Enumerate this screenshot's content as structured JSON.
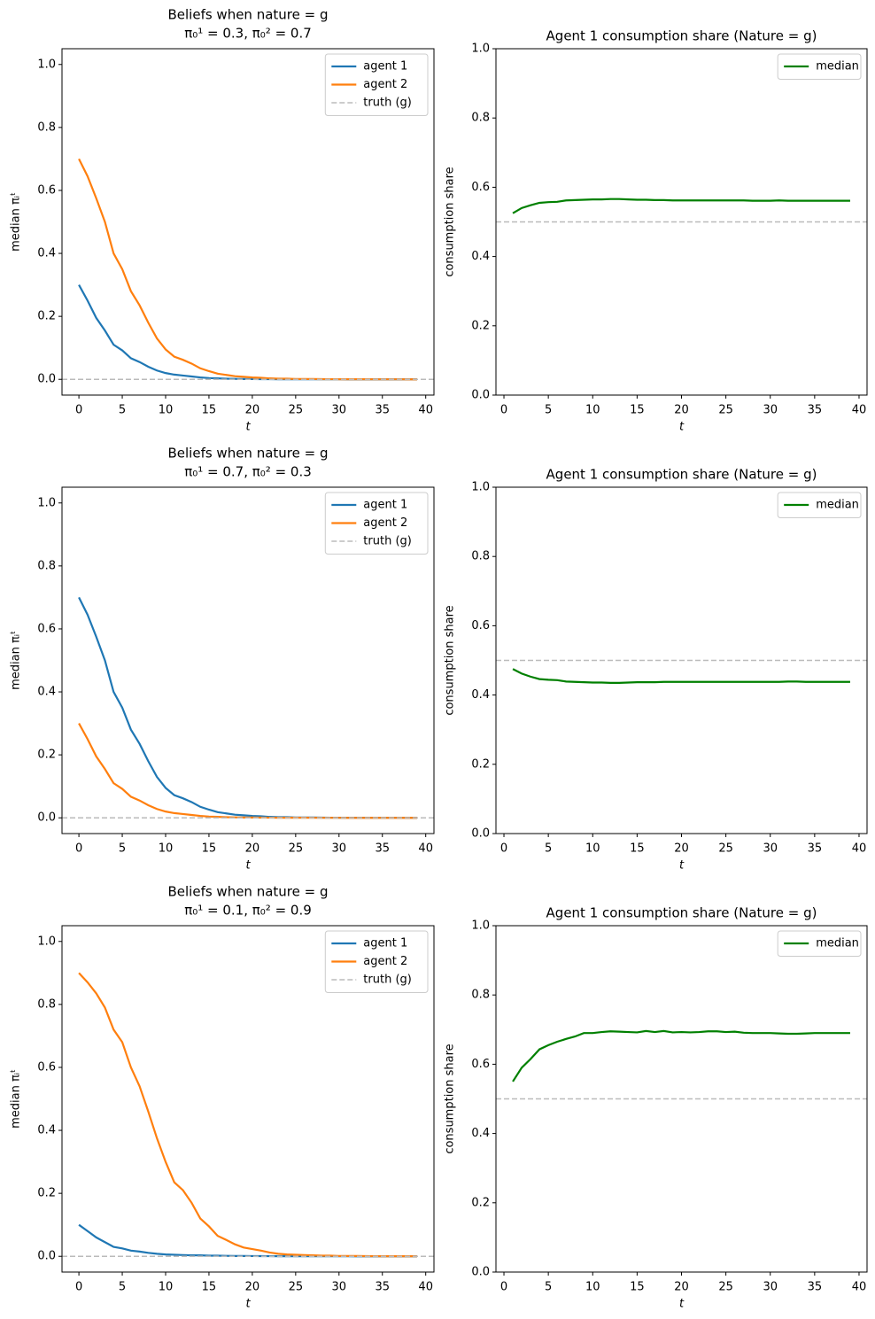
{
  "chart_data": [
    {
      "type": "line",
      "title": "Beliefs when nature = g",
      "subtitle": "π₀¹ = 0.3, π₀² = 0.7",
      "x_label": "t",
      "y_label": "median πᵢᵗ",
      "x": [
        0,
        1,
        2,
        3,
        4,
        5,
        6,
        7,
        8,
        9,
        10,
        11,
        12,
        13,
        14,
        15,
        16,
        17,
        18,
        19,
        20,
        21,
        22,
        23,
        24,
        25,
        26,
        27,
        28,
        29,
        30,
        31,
        32,
        33,
        34,
        35,
        36,
        37,
        38,
        39
      ],
      "series": [
        {
          "name": "agent 1",
          "color": "#1f77b4",
          "values": [
            0.3,
            0.25,
            0.195,
            0.155,
            0.11,
            0.092,
            0.067,
            0.055,
            0.04,
            0.028,
            0.02,
            0.015,
            0.012,
            0.009,
            0.006,
            0.004,
            0.003,
            0.002,
            0.0015,
            0.001,
            0.001,
            0.0007,
            0.0005,
            0.0004,
            0.0003,
            0.0002,
            0.0002,
            0.0001,
            0.0001,
            0.0001,
            0.0001,
            0,
            0,
            0,
            0,
            0,
            0,
            0,
            0,
            0
          ]
        },
        {
          "name": "agent 2",
          "color": "#ff7f0e",
          "values": [
            0.7,
            0.645,
            0.575,
            0.5,
            0.4,
            0.35,
            0.28,
            0.235,
            0.18,
            0.13,
            0.095,
            0.072,
            0.062,
            0.05,
            0.035,
            0.026,
            0.018,
            0.014,
            0.01,
            0.008,
            0.006,
            0.005,
            0.003,
            0.002,
            0.002,
            0.001,
            0.001,
            0.001,
            0.0007,
            0.0005,
            0.0004,
            0.0003,
            0.0002,
            0.0002,
            0.0001,
            0.0001,
            0.0001,
            0.0001,
            0,
            0
          ]
        }
      ],
      "hline": {
        "name": "truth (g)",
        "value": 0,
        "color": "#bbbbbb"
      },
      "xlim": [
        -1.95,
        40.95
      ],
      "xticks": [
        0,
        5,
        10,
        15,
        20,
        25,
        30,
        35,
        40
      ],
      "ylim": [
        -0.05,
        1.05
      ],
      "yticks": [
        {
          "value": 0,
          "label": "0.0"
        },
        0.2,
        0.4,
        0.6,
        0.8,
        {
          "value": 1,
          "label": "1.0"
        }
      ],
      "legend": "upper right"
    },
    {
      "type": "line",
      "title": "Agent 1 consumption share (Nature = g)",
      "x_label": "t",
      "y_label": "consumption share",
      "x": [
        1,
        2,
        3,
        4,
        5,
        6,
        7,
        8,
        9,
        10,
        11,
        12,
        13,
        14,
        15,
        16,
        17,
        18,
        19,
        20,
        21,
        22,
        23,
        24,
        25,
        26,
        27,
        28,
        29,
        30,
        31,
        32,
        33,
        34,
        35,
        36,
        37,
        38,
        39
      ],
      "series": [
        {
          "name": "median",
          "color": "#008000",
          "values": [
            0.525,
            0.54,
            0.548,
            0.555,
            0.557,
            0.558,
            0.562,
            0.563,
            0.564,
            0.565,
            0.565,
            0.566,
            0.566,
            0.565,
            0.564,
            0.564,
            0.563,
            0.563,
            0.562,
            0.562,
            0.562,
            0.562,
            0.562,
            0.562,
            0.562,
            0.562,
            0.562,
            0.561,
            0.561,
            0.561,
            0.562,
            0.561,
            0.561,
            0.561,
            0.561,
            0.561,
            0.561,
            0.561,
            0.561
          ]
        }
      ],
      "hline": {
        "value": 0.5,
        "color": "#bbbbbb"
      },
      "xlim": [
        -0.9,
        40.9
      ],
      "xticks": [
        0,
        5,
        10,
        15,
        20,
        25,
        30,
        35,
        40
      ],
      "ylim": [
        0,
        1
      ],
      "yticks": [
        {
          "value": 0,
          "label": "0.0"
        },
        0.2,
        0.4,
        0.6,
        0.8,
        {
          "value": 1,
          "label": "1.0"
        }
      ],
      "legend": "upper right"
    },
    {
      "type": "line",
      "title": "Beliefs when nature = g",
      "subtitle": "π₀¹ = 0.7, π₀² = 0.3",
      "x_label": "t",
      "y_label": "median πᵢᵗ",
      "x": [
        0,
        1,
        2,
        3,
        4,
        5,
        6,
        7,
        8,
        9,
        10,
        11,
        12,
        13,
        14,
        15,
        16,
        17,
        18,
        19,
        20,
        21,
        22,
        23,
        24,
        25,
        26,
        27,
        28,
        29,
        30,
        31,
        32,
        33,
        34,
        35,
        36,
        37,
        38,
        39
      ],
      "series": [
        {
          "name": "agent 1",
          "color": "#1f77b4",
          "values": [
            0.7,
            0.645,
            0.575,
            0.5,
            0.4,
            0.35,
            0.28,
            0.235,
            0.18,
            0.13,
            0.095,
            0.072,
            0.062,
            0.05,
            0.035,
            0.026,
            0.018,
            0.014,
            0.01,
            0.008,
            0.006,
            0.005,
            0.003,
            0.002,
            0.002,
            0.001,
            0.001,
            0.001,
            0.0007,
            0.0005,
            0.0004,
            0.0003,
            0.0002,
            0.0002,
            0.0001,
            0.0001,
            0.0001,
            0.0001,
            0,
            0
          ]
        },
        {
          "name": "agent 2",
          "color": "#ff7f0e",
          "values": [
            0.3,
            0.25,
            0.195,
            0.155,
            0.11,
            0.092,
            0.067,
            0.055,
            0.04,
            0.028,
            0.02,
            0.015,
            0.012,
            0.009,
            0.006,
            0.004,
            0.003,
            0.002,
            0.0015,
            0.001,
            0.001,
            0.0007,
            0.0005,
            0.0004,
            0.0003,
            0.0002,
            0.0002,
            0.0001,
            0.0001,
            0.0001,
            0.0001,
            0,
            0,
            0,
            0,
            0,
            0,
            0,
            0,
            0
          ]
        }
      ],
      "hline": {
        "name": "truth (g)",
        "value": 0,
        "color": "#bbbbbb"
      },
      "xlim": [
        -1.95,
        40.95
      ],
      "xticks": [
        0,
        5,
        10,
        15,
        20,
        25,
        30,
        35,
        40
      ],
      "ylim": [
        -0.05,
        1.05
      ],
      "yticks": [
        {
          "value": 0,
          "label": "0.0"
        },
        0.2,
        0.4,
        0.6,
        0.8,
        {
          "value": 1,
          "label": "1.0"
        }
      ],
      "legend": "upper right"
    },
    {
      "type": "line",
      "title": "Agent 1 consumption share (Nature = g)",
      "x_label": "t",
      "y_label": "consumption share",
      "x": [
        1,
        2,
        3,
        4,
        5,
        6,
        7,
        8,
        9,
        10,
        11,
        12,
        13,
        14,
        15,
        16,
        17,
        18,
        19,
        20,
        21,
        22,
        23,
        24,
        25,
        26,
        27,
        28,
        29,
        30,
        31,
        32,
        33,
        34,
        35,
        36,
        37,
        38,
        39
      ],
      "series": [
        {
          "name": "median",
          "color": "#008000",
          "values": [
            0.475,
            0.462,
            0.453,
            0.446,
            0.444,
            0.443,
            0.439,
            0.438,
            0.437,
            0.436,
            0.436,
            0.435,
            0.435,
            0.436,
            0.437,
            0.437,
            0.437,
            0.438,
            0.438,
            0.438,
            0.438,
            0.438,
            0.438,
            0.438,
            0.438,
            0.438,
            0.438,
            0.438,
            0.438,
            0.438,
            0.438,
            0.439,
            0.439,
            0.438,
            0.438,
            0.438,
            0.438,
            0.438,
            0.438
          ]
        }
      ],
      "hline": {
        "value": 0.5,
        "color": "#bbbbbb"
      },
      "xlim": [
        -0.9,
        40.9
      ],
      "xticks": [
        0,
        5,
        10,
        15,
        20,
        25,
        30,
        35,
        40
      ],
      "ylim": [
        0,
        1
      ],
      "yticks": [
        {
          "value": 0,
          "label": "0.0"
        },
        0.2,
        0.4,
        0.6,
        0.8,
        {
          "value": 1,
          "label": "1.0"
        }
      ],
      "legend": "upper right"
    },
    {
      "type": "line",
      "title": "Beliefs when nature = g",
      "subtitle": "π₀¹ = 0.1, π₀² = 0.9",
      "x_label": "t",
      "y_label": "median πᵢᵗ",
      "x": [
        0,
        1,
        2,
        3,
        4,
        5,
        6,
        7,
        8,
        9,
        10,
        11,
        12,
        13,
        14,
        15,
        16,
        17,
        18,
        19,
        20,
        21,
        22,
        23,
        24,
        25,
        26,
        27,
        28,
        29,
        30,
        31,
        32,
        33,
        34,
        35,
        36,
        37,
        38,
        39
      ],
      "series": [
        {
          "name": "agent 1",
          "color": "#1f77b4",
          "values": [
            0.1,
            0.08,
            0.06,
            0.045,
            0.03,
            0.025,
            0.018,
            0.015,
            0.011,
            0.008,
            0.006,
            0.005,
            0.004,
            0.003,
            0.003,
            0.002,
            0.002,
            0.0015,
            0.001,
            0.001,
            0.0008,
            0.0006,
            0.0005,
            0.0004,
            0.0003,
            0.0003,
            0.0002,
            0.0002,
            0.0001,
            0.0001,
            0.0001,
            0.0001,
            0,
            0,
            0,
            0,
            0,
            0,
            0,
            0
          ]
        },
        {
          "name": "agent 2",
          "color": "#ff7f0e",
          "values": [
            0.9,
            0.87,
            0.835,
            0.79,
            0.72,
            0.68,
            0.6,
            0.54,
            0.46,
            0.375,
            0.3,
            0.235,
            0.21,
            0.17,
            0.12,
            0.095,
            0.065,
            0.052,
            0.038,
            0.028,
            0.023,
            0.018,
            0.012,
            0.008,
            0.006,
            0.005,
            0.004,
            0.003,
            0.002,
            0.002,
            0.001,
            0.001,
            0.001,
            0.0007,
            0.0005,
            0.0004,
            0.0003,
            0.0002,
            0.0002,
            0.0001
          ]
        }
      ],
      "hline": {
        "name": "truth (g)",
        "value": 0,
        "color": "#bbbbbb"
      },
      "xlim": [
        -1.95,
        40.95
      ],
      "xticks": [
        0,
        5,
        10,
        15,
        20,
        25,
        30,
        35,
        40
      ],
      "ylim": [
        -0.05,
        1.05
      ],
      "yticks": [
        {
          "value": 0,
          "label": "0.0"
        },
        0.2,
        0.4,
        0.6,
        0.8,
        {
          "value": 1,
          "label": "1.0"
        }
      ],
      "legend": "upper right"
    },
    {
      "type": "line",
      "title": "Agent 1 consumption share (Nature = g)",
      "x_label": "t",
      "y_label": "consumption share",
      "x": [
        1,
        2,
        3,
        4,
        5,
        6,
        7,
        8,
        9,
        10,
        11,
        12,
        13,
        14,
        15,
        16,
        17,
        18,
        19,
        20,
        21,
        22,
        23,
        24,
        25,
        26,
        27,
        28,
        29,
        30,
        31,
        32,
        33,
        34,
        35,
        36,
        37,
        38,
        39
      ],
      "series": [
        {
          "name": "median",
          "color": "#008000",
          "values": [
            0.55,
            0.59,
            0.615,
            0.643,
            0.655,
            0.665,
            0.673,
            0.68,
            0.69,
            0.69,
            0.693,
            0.695,
            0.694,
            0.693,
            0.692,
            0.696,
            0.693,
            0.696,
            0.692,
            0.693,
            0.692,
            0.693,
            0.695,
            0.695,
            0.693,
            0.694,
            0.691,
            0.69,
            0.69,
            0.69,
            0.689,
            0.688,
            0.688,
            0.689,
            0.69,
            0.69,
            0.69,
            0.69,
            0.69
          ]
        }
      ],
      "hline": {
        "value": 0.5,
        "color": "#bbbbbb"
      },
      "xlim": [
        -0.9,
        40.9
      ],
      "xticks": [
        0,
        5,
        10,
        15,
        20,
        25,
        30,
        35,
        40
      ],
      "ylim": [
        0,
        1
      ],
      "yticks": [
        {
          "value": 0,
          "label": "0.0"
        },
        0.2,
        0.4,
        0.6,
        0.8,
        {
          "value": 1,
          "label": "1.0"
        }
      ],
      "legend": "upper right"
    }
  ]
}
